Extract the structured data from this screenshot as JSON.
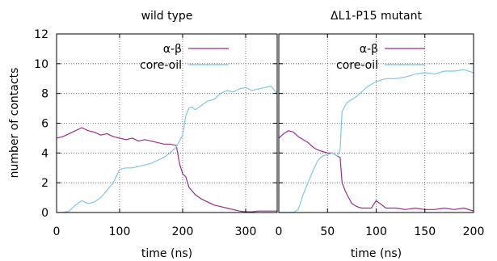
{
  "figure": {
    "ylabel": "number of contacts"
  },
  "chart_data": [
    {
      "type": "line",
      "title": "wild type",
      "xlabel": "time (ns)",
      "ylabel": "number of contacts",
      "xlim": [
        0,
        350
      ],
      "ylim": [
        0,
        12
      ],
      "xticks": [
        0,
        100,
        200,
        300
      ],
      "yticks": [
        0,
        2,
        4,
        6,
        8,
        10,
        12
      ],
      "grid": true,
      "legend_position": "top-right",
      "series": [
        {
          "name": "α-β",
          "color": "#9b2c8e",
          "x": [
            0,
            10,
            20,
            30,
            40,
            50,
            60,
            70,
            80,
            90,
            100,
            110,
            120,
            130,
            140,
            150,
            160,
            170,
            180,
            190,
            195,
            200,
            205,
            210,
            220,
            230,
            240,
            250,
            260,
            270,
            280,
            290,
            300,
            310,
            320,
            330,
            340,
            350
          ],
          "y": [
            5.0,
            5.1,
            5.3,
            5.5,
            5.7,
            5.5,
            5.4,
            5.2,
            5.3,
            5.1,
            5.0,
            4.9,
            5.0,
            4.8,
            4.9,
            4.8,
            4.7,
            4.6,
            4.6,
            4.5,
            3.3,
            2.6,
            2.4,
            1.7,
            1.2,
            0.9,
            0.7,
            0.5,
            0.4,
            0.3,
            0.2,
            0.1,
            0.05,
            0.05,
            0.1,
            0.1,
            0.1,
            0.1
          ]
        },
        {
          "name": "core-oil",
          "color": "#7ec8e3",
          "x": [
            0,
            10,
            20,
            30,
            40,
            50,
            60,
            70,
            80,
            90,
            100,
            110,
            120,
            130,
            140,
            150,
            160,
            170,
            180,
            190,
            200,
            205,
            210,
            215,
            220,
            230,
            240,
            250,
            260,
            270,
            280,
            290,
            300,
            310,
            320,
            330,
            340,
            350
          ],
          "y": [
            0,
            0,
            0.1,
            0.5,
            0.8,
            0.6,
            0.7,
            1.0,
            1.5,
            2.0,
            2.9,
            3.0,
            3.0,
            3.1,
            3.2,
            3.3,
            3.5,
            3.7,
            4.0,
            4.4,
            5.2,
            6.5,
            7.0,
            7.1,
            6.9,
            7.2,
            7.5,
            7.6,
            8.0,
            8.2,
            8.1,
            8.3,
            8.4,
            8.2,
            8.3,
            8.4,
            8.5,
            8.0
          ]
        }
      ]
    },
    {
      "type": "line",
      "title": "ΔL1-P15 mutant",
      "xlabel": "time (ns)",
      "ylabel": "",
      "xlim": [
        0,
        200
      ],
      "ylim": [
        0,
        12
      ],
      "xticks": [
        0,
        50,
        100,
        150,
        200
      ],
      "yticks": [
        0,
        2,
        4,
        6,
        8,
        10,
        12
      ],
      "grid": true,
      "legend_position": "top-right",
      "series": [
        {
          "name": "α-β",
          "color": "#9b2c8e",
          "x": [
            0,
            5,
            10,
            15,
            20,
            25,
            30,
            35,
            40,
            45,
            50,
            55,
            60,
            63,
            65,
            68,
            70,
            75,
            80,
            85,
            90,
            95,
            100,
            110,
            120,
            130,
            140,
            150,
            160,
            170,
            180,
            190,
            200
          ],
          "y": [
            5.0,
            5.3,
            5.5,
            5.4,
            5.1,
            4.9,
            4.7,
            4.4,
            4.2,
            4.1,
            4.0,
            4.0,
            3.8,
            3.7,
            2.0,
            1.5,
            1.2,
            0.6,
            0.4,
            0.3,
            0.3,
            0.3,
            0.8,
            0.3,
            0.3,
            0.2,
            0.3,
            0.2,
            0.2,
            0.3,
            0.2,
            0.3,
            0.1
          ]
        },
        {
          "name": "core-oil",
          "color": "#7ec8e3",
          "x": [
            0,
            5,
            10,
            15,
            20,
            25,
            30,
            35,
            40,
            45,
            50,
            55,
            60,
            63,
            65,
            70,
            75,
            80,
            90,
            100,
            110,
            120,
            130,
            140,
            150,
            160,
            170,
            180,
            190,
            200
          ],
          "y": [
            0,
            0,
            0,
            0,
            0.2,
            1.2,
            2.0,
            2.8,
            3.5,
            3.8,
            3.9,
            4.0,
            3.8,
            4.2,
            6.8,
            7.4,
            7.6,
            7.8,
            8.4,
            8.8,
            9.0,
            9.0,
            9.1,
            9.3,
            9.4,
            9.3,
            9.5,
            9.5,
            9.6,
            9.4
          ]
        }
      ]
    }
  ]
}
